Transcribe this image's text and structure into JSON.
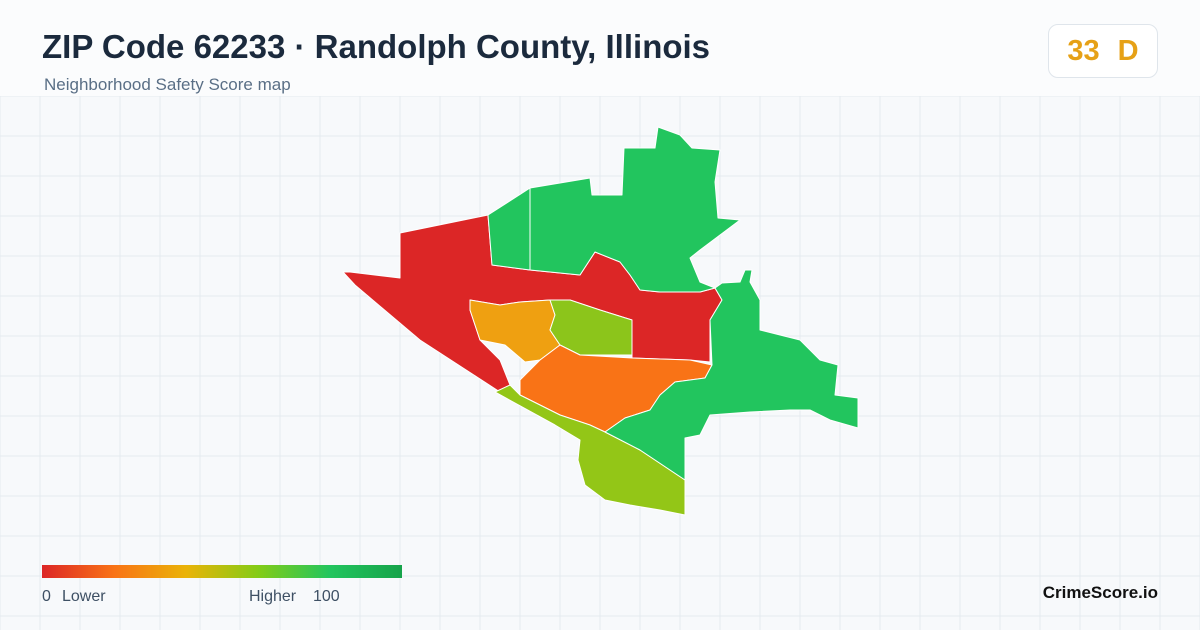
{
  "header": {
    "title": "ZIP Code 62233 · Randolph County, Illinois",
    "subtitle": "Neighborhood Safety Score map"
  },
  "score": {
    "value": 33,
    "grade": "D"
  },
  "legend": {
    "min": 0,
    "min_label": "Lower",
    "max_label": "Higher",
    "max": 100
  },
  "brand": "CrimeScore.io"
}
